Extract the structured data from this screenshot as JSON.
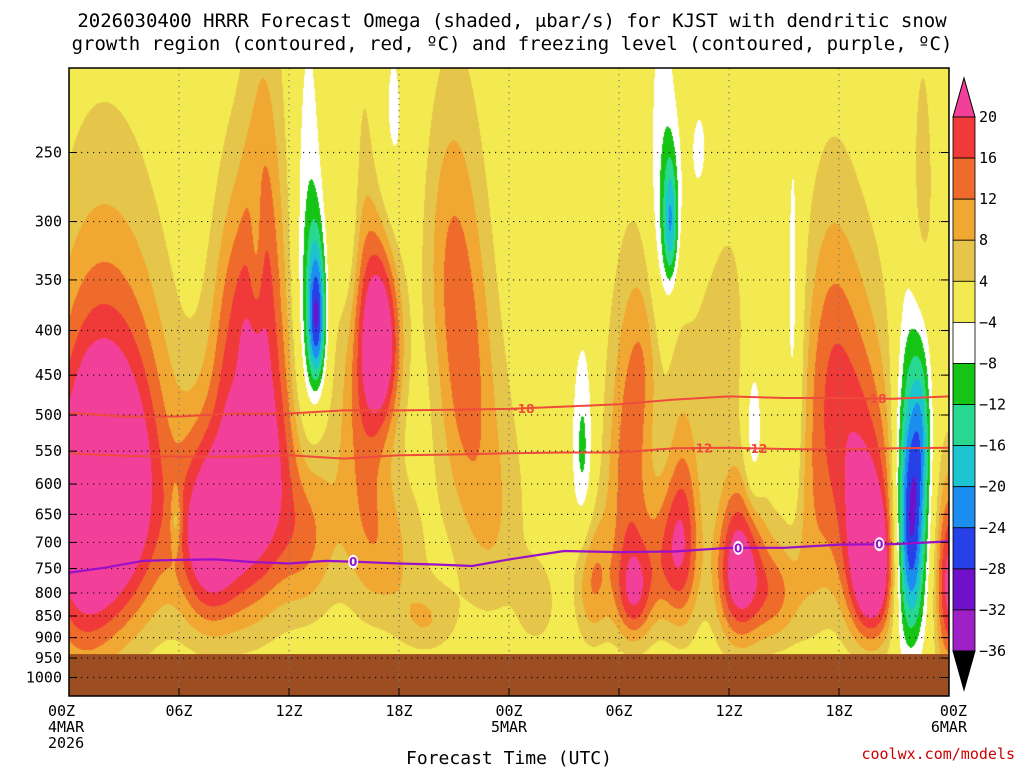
{
  "chart_data": {
    "type": "heatmap",
    "title_lines": [
      "2026030400 HRRR Forecast Omega (shaded, μbar/s) for KJST with dendritic snow",
      "growth region (contoured, red, ºC) and freezing level (contoured, purple, ºC)"
    ],
    "xlabel": "Forecast Time (UTC)",
    "ylabel": "",
    "credit": "coolwx.com/models",
    "x_range_hours": [
      0,
      48
    ],
    "y_range_hPa": [
      200,
      1050
    ],
    "x_ticks": [
      {
        "hour": 0,
        "lines": [
          "00Z",
          "4MAR",
          "2026"
        ]
      },
      {
        "hour": 6,
        "lines": [
          "06Z"
        ]
      },
      {
        "hour": 12,
        "lines": [
          "12Z"
        ]
      },
      {
        "hour": 18,
        "lines": [
          "18Z"
        ]
      },
      {
        "hour": 24,
        "lines": [
          "00Z",
          "5MAR"
        ]
      },
      {
        "hour": 30,
        "lines": [
          "06Z"
        ]
      },
      {
        "hour": 36,
        "lines": [
          "12Z"
        ]
      },
      {
        "hour": 42,
        "lines": [
          "18Z"
        ]
      },
      {
        "hour": 48,
        "lines": [
          "00Z",
          "6MAR"
        ]
      }
    ],
    "y_ticks": [
      250,
      300,
      350,
      400,
      450,
      500,
      550,
      600,
      650,
      700,
      750,
      800,
      850,
      900,
      950,
      1000
    ],
    "ground_top_hPa": 940,
    "colors": {
      "ground": "#9c4e22",
      "frame": "#000000",
      "grid": "#000000",
      "dgz": "#ef4b3c",
      "freezing": "#9a10c8"
    },
    "colorbar": {
      "boundaries": [
        20,
        16,
        12,
        8,
        4,
        -4,
        -8,
        -12,
        -16,
        -20,
        -24,
        -28,
        -32,
        -36
      ],
      "colors": [
        "#f2409a",
        "#f03a3a",
        "#ee6b2c",
        "#f0a832",
        "#e6c64a",
        "#f2ea50",
        "#ffffff",
        "#16c416",
        "#28d890",
        "#1cc4d0",
        "#1c8ef0",
        "#2840e8",
        "#7010c8",
        "#a020c8",
        "#aaaaaa",
        "#000000"
      ],
      "labels": [
        "20",
        "16",
        "12",
        "8",
        "4",
        "−4",
        "−8",
        "−12",
        "−16",
        "−20",
        "−24",
        "−28",
        "−32",
        "−36"
      ]
    },
    "omega_blobs": [
      {
        "hour": 2.5,
        "hPa": 600,
        "dh": 3,
        "dp": 260,
        "value": 30
      },
      {
        "hour": 0.5,
        "hPa": 700,
        "dh": 2,
        "dp": 300,
        "value": 14
      },
      {
        "hour": 7.5,
        "hPa": 690,
        "dh": 1.6,
        "dp": 180,
        "value": 22
      },
      {
        "hour": 9.5,
        "hPa": 640,
        "dh": 1.8,
        "dp": 220,
        "value": 18
      },
      {
        "hour": 11,
        "hPa": 520,
        "dh": 1.5,
        "dp": 260,
        "value": 14
      },
      {
        "hour": 9,
        "hPa": 400,
        "dh": 1.3,
        "dp": 150,
        "value": 11
      },
      {
        "hour": 10.5,
        "hPa": 300,
        "dh": 1,
        "dp": 140,
        "value": 7
      },
      {
        "hour": 13,
        "hPa": 680,
        "dh": 1.6,
        "dp": 170,
        "value": 12
      },
      {
        "hour": 16,
        "hPa": 480,
        "dh": 1.5,
        "dp": 280,
        "value": 12
      },
      {
        "hour": 17,
        "hPa": 410,
        "dh": 1.1,
        "dp": 100,
        "value": 22
      },
      {
        "hour": 17.5,
        "hPa": 720,
        "dh": 2,
        "dp": 150,
        "value": 8
      },
      {
        "hour": 19.5,
        "hPa": 860,
        "dh": 1.6,
        "dp": 80,
        "value": 7
      },
      {
        "hour": 21.5,
        "hPa": 430,
        "dh": 1.6,
        "dp": 190,
        "value": 12
      },
      {
        "hour": 23,
        "hPa": 650,
        "dh": 2,
        "dp": 220,
        "value": 8
      },
      {
        "hour": 20.5,
        "hPa": 310,
        "dh": 1.4,
        "dp": 120,
        "value": 6
      },
      {
        "hour": 25.5,
        "hPa": 820,
        "dh": 1,
        "dp": 90,
        "value": 7
      },
      {
        "hour": 28.5,
        "hPa": 770,
        "dh": 1,
        "dp": 140,
        "value": 12
      },
      {
        "hour": 30.5,
        "hPa": 580,
        "dh": 1.3,
        "dp": 230,
        "value": 14
      },
      {
        "hour": 30.8,
        "hPa": 800,
        "dh": 1.1,
        "dp": 110,
        "value": 16
      },
      {
        "hour": 32.5,
        "hPa": 720,
        "dh": 1.1,
        "dp": 140,
        "value": 10
      },
      {
        "hour": 32,
        "hPa": 420,
        "dh": 1.3,
        "dp": 110,
        "value": 10
      },
      {
        "hour": 33.5,
        "hPa": 690,
        "dh": 1,
        "dp": 190,
        "value": 16
      },
      {
        "hour": 35.5,
        "hPa": 400,
        "dh": 1.5,
        "dp": 150,
        "value": 7
      },
      {
        "hour": 36.5,
        "hPa": 750,
        "dh": 1.3,
        "dp": 160,
        "value": 24
      },
      {
        "hour": 38.5,
        "hPa": 800,
        "dh": 1.4,
        "dp": 120,
        "value": 12
      },
      {
        "hour": 40.5,
        "hPa": 650,
        "dh": 1.2,
        "dp": 250,
        "value": 7
      },
      {
        "hour": 43,
        "hPa": 580,
        "dh": 2,
        "dp": 230,
        "value": 18
      },
      {
        "hour": 41.5,
        "hPa": 410,
        "dh": 1.4,
        "dp": 160,
        "value": 8
      },
      {
        "hour": 43.8,
        "hPa": 760,
        "dh": 1.3,
        "dp": 150,
        "value": 24
      },
      {
        "hour": 45.5,
        "hPa": 620,
        "dh": 1,
        "dp": 200,
        "value": 10
      },
      {
        "hour": 46.5,
        "hPa": 280,
        "dh": 0.7,
        "dp": 110,
        "value": 7
      },
      {
        "hour": 48,
        "hPa": 780,
        "dh": 0.8,
        "dp": 200,
        "value": 22
      },
      {
        "hour": 13,
        "hPa": 360,
        "dh": 0.8,
        "dp": 190,
        "value": -10
      },
      {
        "hour": 13.5,
        "hPa": 385,
        "dh": 0.5,
        "dp": 75,
        "value": -24
      },
      {
        "hour": 15.2,
        "hPa": 290,
        "dh": 0.6,
        "dp": 110,
        "value": -7
      },
      {
        "hour": 28,
        "hPa": 560,
        "dh": 0.6,
        "dp": 150,
        "value": -10
      },
      {
        "hour": 32.3,
        "hPa": 340,
        "dh": 0.8,
        "dp": 180,
        "value": -10
      },
      {
        "hour": 32.8,
        "hPa": 300,
        "dh": 0.4,
        "dp": 50,
        "value": -16
      },
      {
        "hour": 34.5,
        "hPa": 260,
        "dh": 1.2,
        "dp": 80,
        "value": -6
      },
      {
        "hour": 37.3,
        "hPa": 530,
        "dh": 0.5,
        "dp": 100,
        "value": -10
      },
      {
        "hour": 39.5,
        "hPa": 410,
        "dh": 0.5,
        "dp": 240,
        "value": -7
      },
      {
        "hour": 45.8,
        "hPa": 650,
        "dh": 0.9,
        "dp": 230,
        "value": -40
      },
      {
        "hour": 46.5,
        "hPa": 520,
        "dh": 0.5,
        "dp": 120,
        "value": -9
      },
      {
        "hour": 9,
        "hPa": 440,
        "dh": 0.5,
        "dp": 60,
        "value": -2
      },
      {
        "hour": 17.5,
        "hPa": 240,
        "dh": 1,
        "dp": 90,
        "value": -7
      },
      {
        "hour": 10.2,
        "hPa": 330,
        "dh": 0.4,
        "dp": 70,
        "value": -6
      },
      {
        "hour": 5.8,
        "hPa": 660,
        "dh": 0.3,
        "dp": 60,
        "value": -8
      }
    ],
    "dgz_contours": [
      {
        "label": "-18",
        "label_at_hour": 44,
        "points": [
          [
            0,
            497
          ],
          [
            3,
            502
          ],
          [
            6,
            502
          ],
          [
            9,
            498
          ],
          [
            12,
            498
          ],
          [
            15,
            494
          ],
          [
            18,
            494
          ],
          [
            21,
            493
          ],
          [
            24,
            492
          ],
          [
            27,
            489
          ],
          [
            30,
            486
          ],
          [
            33,
            480
          ],
          [
            36,
            476
          ],
          [
            39,
            478
          ],
          [
            42,
            478
          ],
          [
            45,
            479
          ],
          [
            48,
            476
          ]
        ]
      },
      {
        "label": "-12",
        "label_at_hour": 37.5,
        "points": [
          [
            0,
            553
          ],
          [
            3,
            557
          ],
          [
            6,
            558
          ],
          [
            9,
            558
          ],
          [
            12,
            556
          ],
          [
            15,
            561
          ],
          [
            18,
            556
          ],
          [
            21,
            555
          ],
          [
            24,
            553
          ],
          [
            27,
            552
          ],
          [
            30,
            552
          ],
          [
            33,
            546
          ],
          [
            36,
            545
          ],
          [
            39,
            547
          ],
          [
            42,
            548
          ],
          [
            45,
            546
          ],
          [
            48,
            545
          ]
        ]
      }
    ],
    "dgz_extra_labels": [
      {
        "text": "-18",
        "hour": 24.8
      },
      {
        "text": "-12",
        "hour": 34.5
      }
    ],
    "freezing_contour": {
      "label": "0",
      "label_hours": [
        15.5,
        36.5,
        44.2
      ],
      "points": [
        [
          0,
          758
        ],
        [
          2,
          748
        ],
        [
          4,
          735
        ],
        [
          6,
          733
        ],
        [
          8,
          732
        ],
        [
          10,
          737
        ],
        [
          12,
          740
        ],
        [
          14,
          735
        ],
        [
          16,
          737
        ],
        [
          18,
          740
        ],
        [
          20,
          742
        ],
        [
          22,
          745
        ],
        [
          24,
          732
        ],
        [
          27,
          716
        ],
        [
          30,
          718
        ],
        [
          33,
          717
        ],
        [
          36,
          710
        ],
        [
          39,
          710
        ],
        [
          42,
          704
        ],
        [
          45,
          703
        ],
        [
          48,
          698
        ]
      ]
    }
  }
}
